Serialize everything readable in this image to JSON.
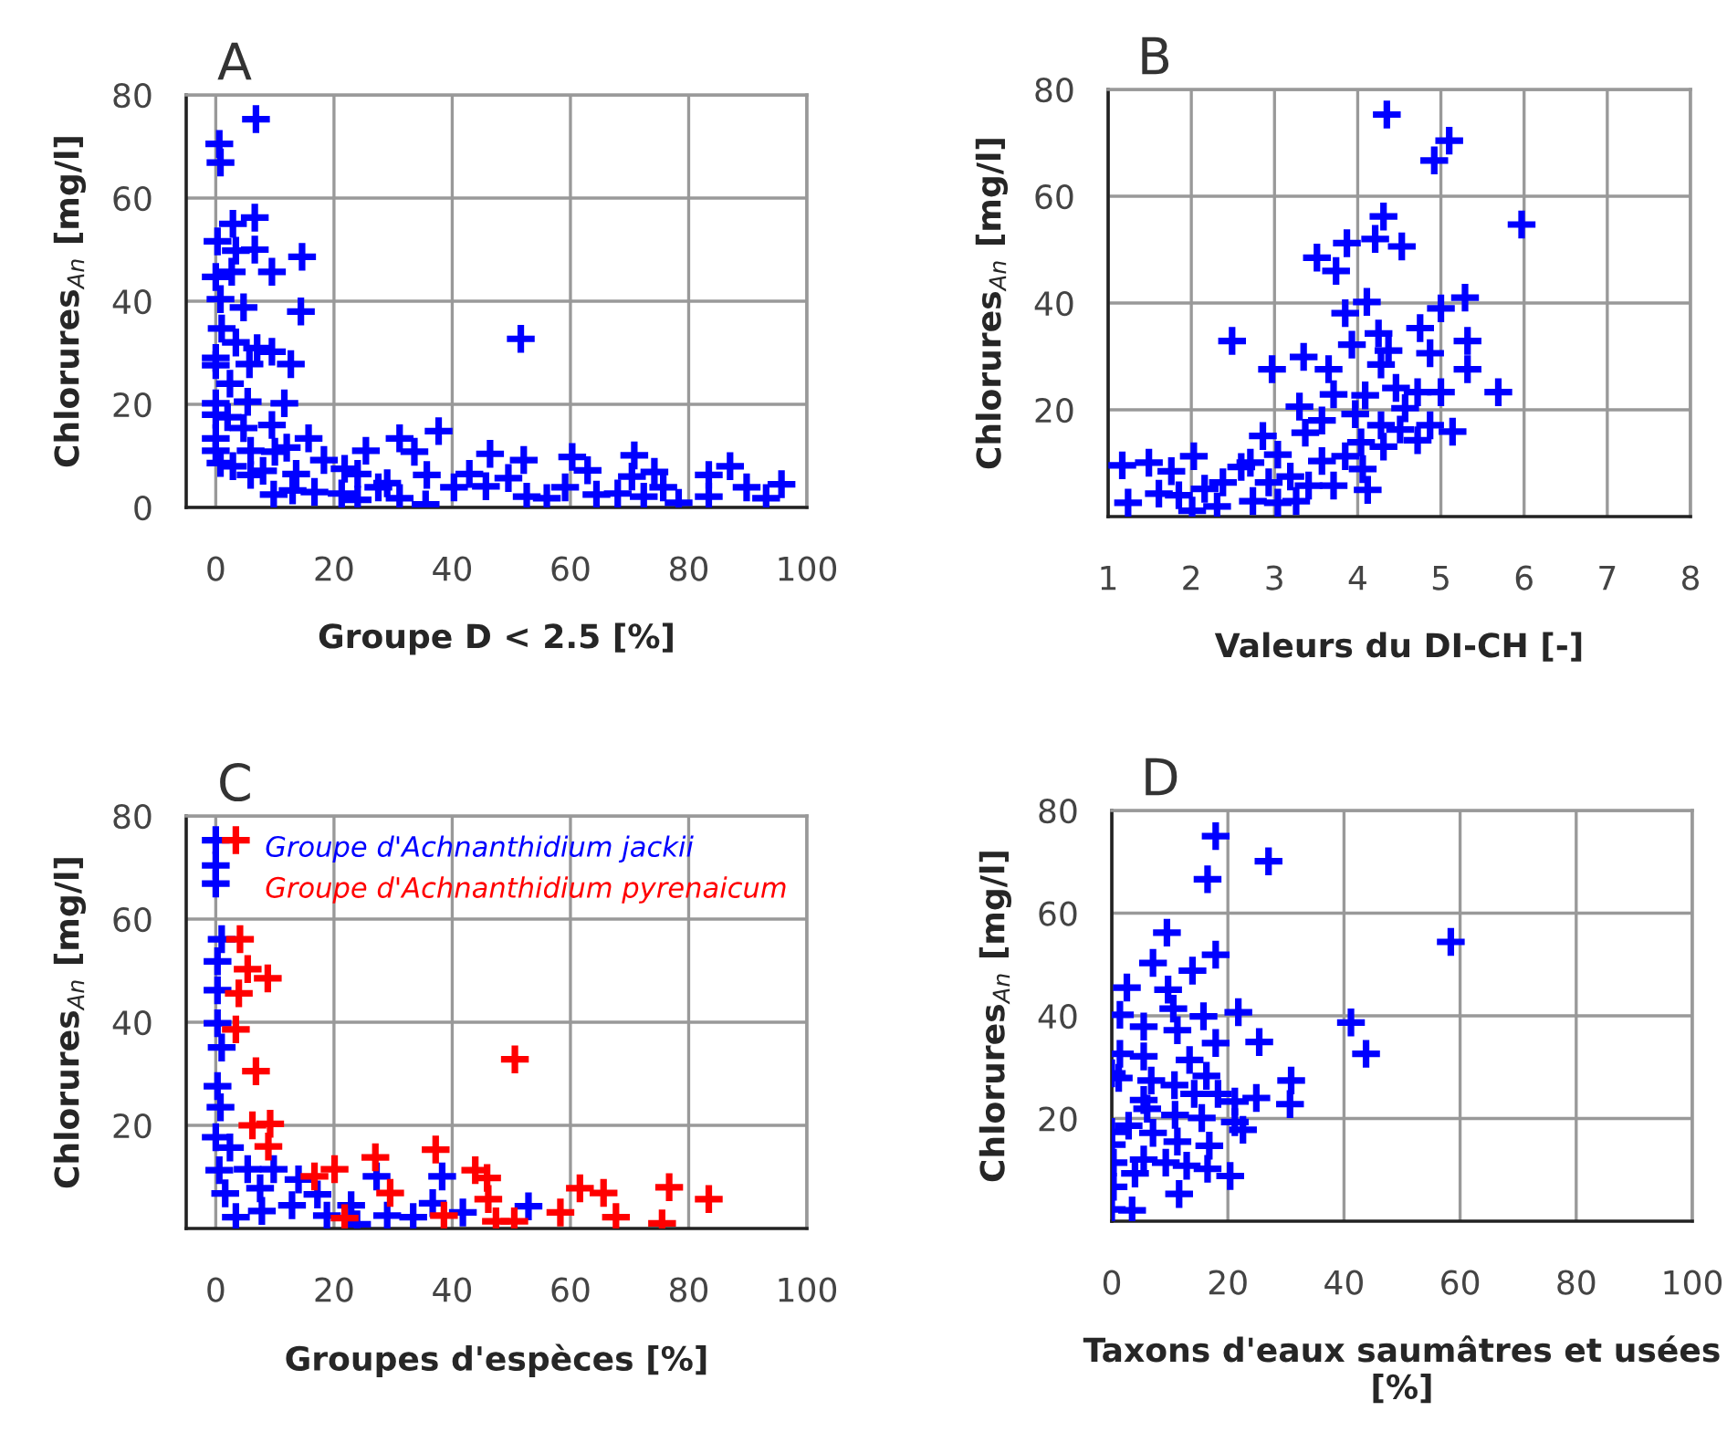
{
  "chart_data": [
    {
      "type": "scatter",
      "title": "A",
      "xlabel": "Groupe D < 2.5 [%]",
      "ylabel": "Chlorures$_{An}$ [mg/l]",
      "xlim": [
        -5,
        100
      ],
      "ylim": [
        0,
        80
      ],
      "xticks": [
        0,
        20,
        40,
        60,
        80,
        100
      ],
      "yticks": [
        0,
        20,
        40,
        60,
        80
      ],
      "grid": true,
      "marker": "cross",
      "series": [
        {
          "color": "#0000ff",
          "x": [
            0.6,
            0.8,
            6.8,
            6.6,
            2.9,
            0.3,
            6.6,
            3.4,
            14.6,
            9.5,
            2.7,
            0,
            0.8,
            4.7,
            14.4,
            1,
            3.4,
            7,
            51.6,
            9.5,
            12.7,
            0,
            5.7,
            2.4,
            0,
            5.4,
            11.6,
            2,
            4.7,
            9.5,
            0,
            5.9,
            10,
            15.7,
            2.9,
            8,
            13.6,
            9.8,
            16.7,
            18.3,
            25.4,
            21.3,
            24,
            29,
            31.1,
            33.6,
            37.7,
            31.1,
            35.5,
            35.7,
            40.3,
            42.9,
            45.7,
            46.4,
            49.5,
            52.1,
            52.6,
            56,
            59.1,
            60.3,
            62.9,
            64.4,
            68,
            70.8,
            70.4,
            72.4,
            74.2,
            75.7,
            78.3,
            83.4,
            83.4,
            87,
            89.8,
            93.1,
            95.7,
            0,
            0,
            0,
            0.8,
            5.9,
            12,
            21.8,
            27.5,
            24,
            13
          ],
          "values": [
            70.5,
            66.9,
            75.3,
            56.2,
            55,
            51.6,
            50,
            49.8,
            48.6,
            45.7,
            45.7,
            44.7,
            40.4,
            38.8,
            38,
            34.7,
            32,
            30.9,
            32.7,
            30.2,
            27.8,
            27.6,
            27.8,
            24,
            20.2,
            20.5,
            20.2,
            17.5,
            15.4,
            16,
            13.4,
            11,
            10.8,
            13.4,
            8,
            7.1,
            6.5,
            2.5,
            3,
            9.2,
            11,
            2.7,
            6.5,
            4.7,
            13.4,
            10.8,
            14.8,
            1.8,
            0.6,
            6.3,
            3.9,
            6.5,
            4.1,
            10.4,
            5.7,
            9.2,
            2.1,
            1.8,
            3.9,
            9.8,
            7.2,
            2.5,
            2.7,
            10.1,
            6,
            2.1,
            6.9,
            3.9,
            0.9,
            6.3,
            2.1,
            8,
            3.9,
            1.8,
            4.5,
            29,
            18,
            11,
            8.6,
            6.3,
            11.6,
            7.5,
            3.9,
            1.5,
            3.3
          ]
        }
      ]
    },
    {
      "type": "scatter",
      "title": "B",
      "xlabel": "Valeurs du DI-CH [-]",
      "ylabel": "Chlorures$_{An}$ [mg/l]",
      "xlim": [
        1,
        8
      ],
      "ylim": [
        0,
        80
      ],
      "xticks": [
        1,
        2,
        3,
        4,
        5,
        6,
        7,
        8
      ],
      "yticks": [
        20,
        40,
        60,
        80
      ],
      "grid": true,
      "marker": "cross",
      "series": [
        {
          "color": "#0000ff",
          "x": [
            4.35,
            5.1,
            4.92,
            5.97,
            4.31,
            3.87,
            4.21,
            4.53,
            3.51,
            3.74,
            2.49,
            4.11,
            3.85,
            5.0,
            5.29,
            4.75,
            3.93,
            4.37,
            4.87,
            5.32,
            3.35,
            2.97,
            3.65,
            5.32,
            4.46,
            4.72,
            5.0,
            5.69,
            3.71,
            4.09,
            3.3,
            3.57,
            3.97,
            4.28,
            4.51,
            4.87,
            5.14,
            4.72,
            2.86,
            3.37,
            3.04,
            4.04,
            4.31,
            3.57,
            3.85,
            2.71,
            2.03,
            1.49,
            1.17,
            1.76,
            3.19,
            4.06,
            2.93,
            3.41,
            3.71,
            4.12,
            2.38,
            1.24,
            1.61,
            1.85,
            2.31,
            2.01,
            2.74,
            3.04,
            2.6,
            2.16,
            3.26,
            4.57,
            4.25,
            4.28
          ],
          "values": [
            75.3,
            70.4,
            66.7,
            54.7,
            56.2,
            51.2,
            52,
            50.6,
            48.5,
            46,
            32.9,
            40.2,
            38.1,
            39,
            41,
            35.3,
            32.2,
            31.1,
            30.6,
            32.9,
            29.9,
            27.6,
            27.6,
            27.6,
            24.1,
            23.3,
            23.3,
            23.3,
            22.9,
            22.7,
            20.6,
            18,
            19.2,
            17.1,
            16.3,
            17.1,
            15.9,
            14.3,
            15.1,
            15.7,
            11.6,
            13.9,
            13.1,
            10.4,
            11.3,
            10.1,
            11.3,
            10.1,
            9.6,
            8.5,
            7.5,
            8.9,
            6.4,
            5.8,
            5.8,
            5,
            6.4,
            2.6,
            4.3,
            4,
            1.9,
            1.1,
            2.9,
            2.6,
            9.3,
            5.2,
            2.9,
            20.3,
            34.3,
            28.5
          ]
        }
      ]
    },
    {
      "type": "scatter",
      "title": "C",
      "xlabel": "Groupes d'espèces [%]",
      "ylabel": "Chlorures$_{An}$ [mg/l]",
      "xlim": [
        -5,
        100
      ],
      "ylim": [
        0,
        80
      ],
      "xticks": [
        0,
        20,
        40,
        60,
        80,
        100
      ],
      "yticks": [
        20,
        40,
        60,
        80
      ],
      "grid": true,
      "marker": "cross",
      "legend": "top right",
      "series": [
        {
          "name": "Groupe d'Achnanthidium jackii",
          "color": "#0000ff",
          "x": [
            0,
            0,
            0,
            1,
            0.3,
            0.3,
            0.3,
            1,
            0.3,
            0.8,
            0,
            2.4,
            0.6,
            1.6,
            3.4,
            5.4,
            7.5,
            7.8,
            9.8,
            12.9,
            14,
            17.2,
            18.8,
            22.9,
            23.9,
            27.2,
            29,
            33.4,
            36.7,
            38.3,
            41.8,
            52.9
          ],
          "values": [
            75.3,
            70.4,
            66.9,
            56.1,
            51.8,
            46.2,
            39.8,
            35.1,
            27.6,
            23.5,
            17.7,
            15.7,
            11.3,
            6.8,
            2.2,
            11.5,
            7.8,
            3.4,
            11.5,
            4.5,
            9.5,
            6.6,
            2.5,
            4.5,
            0.8,
            10.1,
            2.5,
            2.2,
            4.9,
            10.1,
            3.1,
            4.3
          ]
        },
        {
          "name": "Groupe d'Achnanthidium pyrenaicum",
          "color": "#ff0000",
          "x": [
            3.4,
            4.1,
            5.4,
            8.8,
            3.9,
            3.4,
            6.8,
            6.2,
            9.2,
            8.9,
            50.6,
            37.2,
            27,
            20.1,
            16.7,
            45.9,
            46.1,
            38.6,
            47.4,
            50.5,
            58.3,
            61.6,
            65.6,
            67.7,
            75.5,
            76.7,
            83.4,
            21.8,
            29.5,
            43.9
          ],
          "values": [
            75.3,
            56.1,
            50.3,
            48.5,
            45.6,
            38.6,
            30.5,
            20,
            20.3,
            15.9,
            32.8,
            15.3,
            13.8,
            11.5,
            10.1,
            9.8,
            5.7,
            2.5,
            1.4,
            1.4,
            3.1,
            7.8,
            6.9,
            2.2,
            1,
            8,
            5.7,
            2,
            6.9,
            11.3
          ]
        }
      ]
    },
    {
      "type": "scatter",
      "title": "D",
      "xlabel": "Taxons d'eaux saumâtres et usées [%]",
      "ylabel": "Chlorures$_{An}$ [mg/l]",
      "xlim": [
        0,
        100
      ],
      "ylim": [
        0,
        80
      ],
      "xticks": [
        0,
        20,
        40,
        60,
        80,
        100
      ],
      "yticks": [
        20,
        40,
        60,
        80
      ],
      "grid": true,
      "marker": "cross",
      "series": [
        {
          "color": "#0000ff",
          "x": [
            17.9,
            27,
            16.5,
            9.5,
            58.4,
            17.9,
            7.1,
            13.9,
            2.6,
            9.7,
            10.6,
            21.8,
            41.2,
            15.8,
            1.4,
            5.5,
            11.3,
            17.9,
            25.4,
            43.8,
            1.4,
            5.5,
            13.4,
            1.2,
            6.8,
            16.3,
            30.9,
            10.8,
            14.2,
            18.3,
            24.9,
            21.2,
            30.7,
            5.5,
            10.9,
            15.5,
            21.2,
            2.9,
            7.1,
            11.3,
            16.8,
            0.3,
            9.3,
            12.9,
            16.5,
            20.4,
            4,
            0.3,
            11.6,
            0,
            3.5,
            0,
            0,
            0,
            6.1,
            5.5,
            22.6
          ],
          "values": [
            75,
            70.1,
            66.6,
            56.2,
            54.4,
            51.9,
            50.3,
            48.8,
            45.5,
            45.1,
            41.4,
            40.7,
            38.7,
            39.9,
            40.2,
            37.9,
            37.2,
            34.7,
            34.9,
            32.6,
            32.6,
            32.1,
            31.4,
            27.9,
            27.4,
            28.3,
            27.4,
            26.5,
            24.8,
            24.8,
            24,
            23.3,
            22.8,
            23.6,
            20.7,
            20.1,
            19.3,
            18.6,
            17.2,
            15.5,
            14.7,
            11.4,
            11.4,
            10.8,
            10.2,
            8.8,
            9.3,
            6.7,
            5.3,
            2.3,
            2.1,
            28.8,
            17.4,
            14.9,
            21.9,
            12,
            17.8
          ]
        }
      ]
    }
  ]
}
